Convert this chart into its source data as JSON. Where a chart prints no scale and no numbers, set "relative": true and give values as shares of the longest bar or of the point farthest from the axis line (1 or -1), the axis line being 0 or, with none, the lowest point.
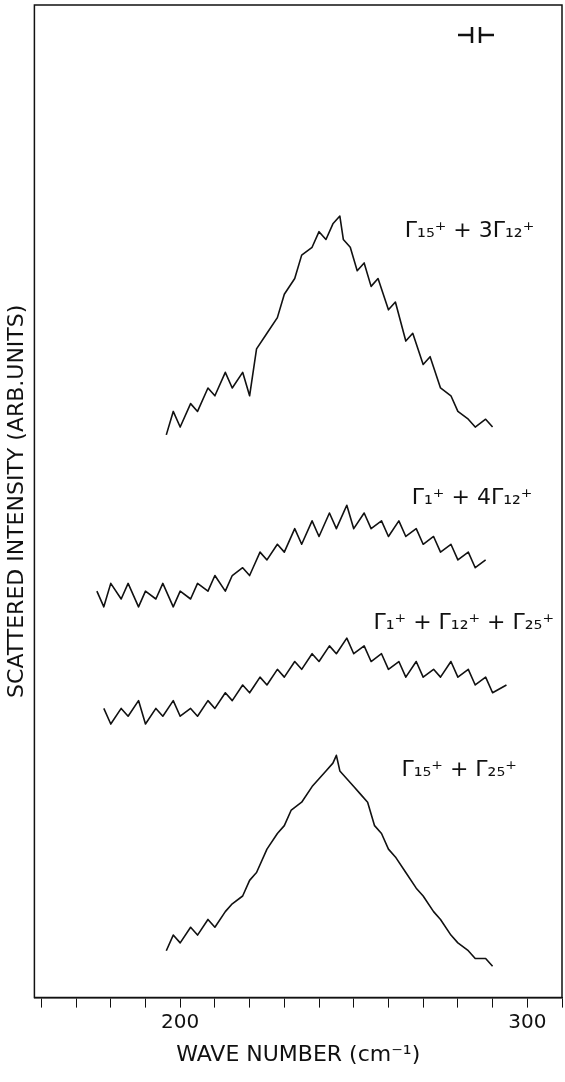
{
  "chart_data": {
    "type": "line",
    "relative": true,
    "xlabel": "WAVE NUMBER (cm⁻¹)",
    "ylabel": "SCATTERED INTENSITY (ARB.UNITS)",
    "xlim": [
      158,
      310
    ],
    "xticks": [
      {
        "value": 160,
        "label": null
      },
      {
        "value": 170,
        "label": null
      },
      {
        "value": 180,
        "label": null
      },
      {
        "value": 190,
        "label": null
      },
      200,
      {
        "value": 210,
        "label": null
      },
      {
        "value": 220,
        "label": null
      },
      {
        "value": 230,
        "label": null
      },
      {
        "value": 240,
        "label": null
      },
      {
        "value": 250,
        "label": null
      },
      {
        "value": 260,
        "label": null
      },
      {
        "value": 270,
        "label": null
      },
      {
        "value": 280,
        "label": null
      },
      {
        "value": 290,
        "label": null
      },
      300,
      {
        "value": 310,
        "label": null
      }
    ],
    "grid": false,
    "legend": false,
    "marker": "none",
    "line_style": "solid",
    "series": [
      {
        "name": "Γ₁₅⁺ + 3Γ₁₂⁺",
        "color": "#111111",
        "x": [
          196,
          198,
          200,
          203,
          205,
          208,
          210,
          213,
          215,
          218,
          220,
          222,
          225,
          228,
          230,
          233,
          235,
          238,
          240,
          242,
          244,
          246,
          247,
          249,
          251,
          253,
          255,
          257,
          260,
          262,
          265,
          267,
          270,
          272,
          275,
          278,
          280,
          283,
          285,
          288,
          290
        ],
        "values": [
          0.72,
          0.75,
          0.73,
          0.76,
          0.75,
          0.78,
          0.77,
          0.8,
          0.78,
          0.8,
          0.77,
          0.83,
          0.85,
          0.87,
          0.9,
          0.92,
          0.95,
          0.96,
          0.98,
          0.97,
          0.99,
          1,
          0.97,
          0.96,
          0.93,
          0.94,
          0.91,
          0.92,
          0.88,
          0.89,
          0.84,
          0.85,
          0.81,
          0.82,
          0.78,
          0.77,
          0.75,
          0.74,
          0.73,
          0.74,
          0.73
        ]
      },
      {
        "name": "Γ₁⁺ + 4Γ₁₂⁺",
        "color": "#111111",
        "x": [
          176,
          178,
          180,
          183,
          185,
          188,
          190,
          193,
          195,
          198,
          200,
          203,
          205,
          208,
          210,
          213,
          215,
          218,
          220,
          223,
          225,
          228,
          230,
          233,
          235,
          238,
          240,
          243,
          245,
          248,
          250,
          253,
          255,
          258,
          260,
          263,
          265,
          268,
          270,
          273,
          275,
          278,
          280,
          283,
          285,
          288
        ],
        "values": [
          0.52,
          0.5,
          0.53,
          0.51,
          0.53,
          0.5,
          0.52,
          0.51,
          0.53,
          0.5,
          0.52,
          0.51,
          0.53,
          0.52,
          0.54,
          0.52,
          0.54,
          0.55,
          0.54,
          0.57,
          0.56,
          0.58,
          0.57,
          0.6,
          0.58,
          0.61,
          0.59,
          0.62,
          0.6,
          0.63,
          0.6,
          0.62,
          0.6,
          0.61,
          0.59,
          0.61,
          0.59,
          0.6,
          0.58,
          0.59,
          0.57,
          0.58,
          0.56,
          0.57,
          0.55,
          0.56
        ]
      },
      {
        "name": "Γ₁⁺ + Γ₁₂⁺ + Γ₂₅⁺",
        "color": "#111111",
        "x": [
          178,
          180,
          183,
          185,
          188,
          190,
          193,
          195,
          198,
          200,
          203,
          205,
          208,
          210,
          213,
          215,
          218,
          220,
          223,
          225,
          228,
          230,
          233,
          235,
          238,
          240,
          243,
          245,
          248,
          250,
          253,
          255,
          258,
          260,
          263,
          265,
          268,
          270,
          273,
          275,
          278,
          280,
          283,
          285,
          288,
          290,
          294
        ],
        "values": [
          0.37,
          0.35,
          0.37,
          0.36,
          0.38,
          0.35,
          0.37,
          0.36,
          0.38,
          0.36,
          0.37,
          0.36,
          0.38,
          0.37,
          0.39,
          0.38,
          0.4,
          0.39,
          0.41,
          0.4,
          0.42,
          0.41,
          0.43,
          0.42,
          0.44,
          0.43,
          0.45,
          0.44,
          0.46,
          0.44,
          0.45,
          0.43,
          0.44,
          0.42,
          0.43,
          0.41,
          0.43,
          0.41,
          0.42,
          0.41,
          0.43,
          0.41,
          0.42,
          0.4,
          0.41,
          0.39,
          0.4
        ]
      },
      {
        "name": "Γ₁₅⁺ + Γ₂₅⁺",
        "color": "#111111",
        "x": [
          196,
          198,
          200,
          203,
          205,
          208,
          210,
          213,
          215,
          218,
          220,
          222,
          225,
          228,
          230,
          232,
          235,
          238,
          240,
          242,
          244,
          245,
          246,
          248,
          250,
          252,
          254,
          256,
          258,
          260,
          262,
          265,
          268,
          270,
          273,
          275,
          278,
          280,
          283,
          285,
          288,
          290
        ],
        "values": [
          0.06,
          0.08,
          0.07,
          0.09,
          0.08,
          0.1,
          0.09,
          0.11,
          0.12,
          0.13,
          0.15,
          0.16,
          0.19,
          0.21,
          0.22,
          0.24,
          0.25,
          0.27,
          0.28,
          0.29,
          0.3,
          0.31,
          0.29,
          0.28,
          0.27,
          0.26,
          0.25,
          0.22,
          0.21,
          0.19,
          0.18,
          0.16,
          0.14,
          0.13,
          0.11,
          0.1,
          0.08,
          0.07,
          0.06,
          0.05,
          0.05,
          0.04
        ]
      }
    ]
  }
}
